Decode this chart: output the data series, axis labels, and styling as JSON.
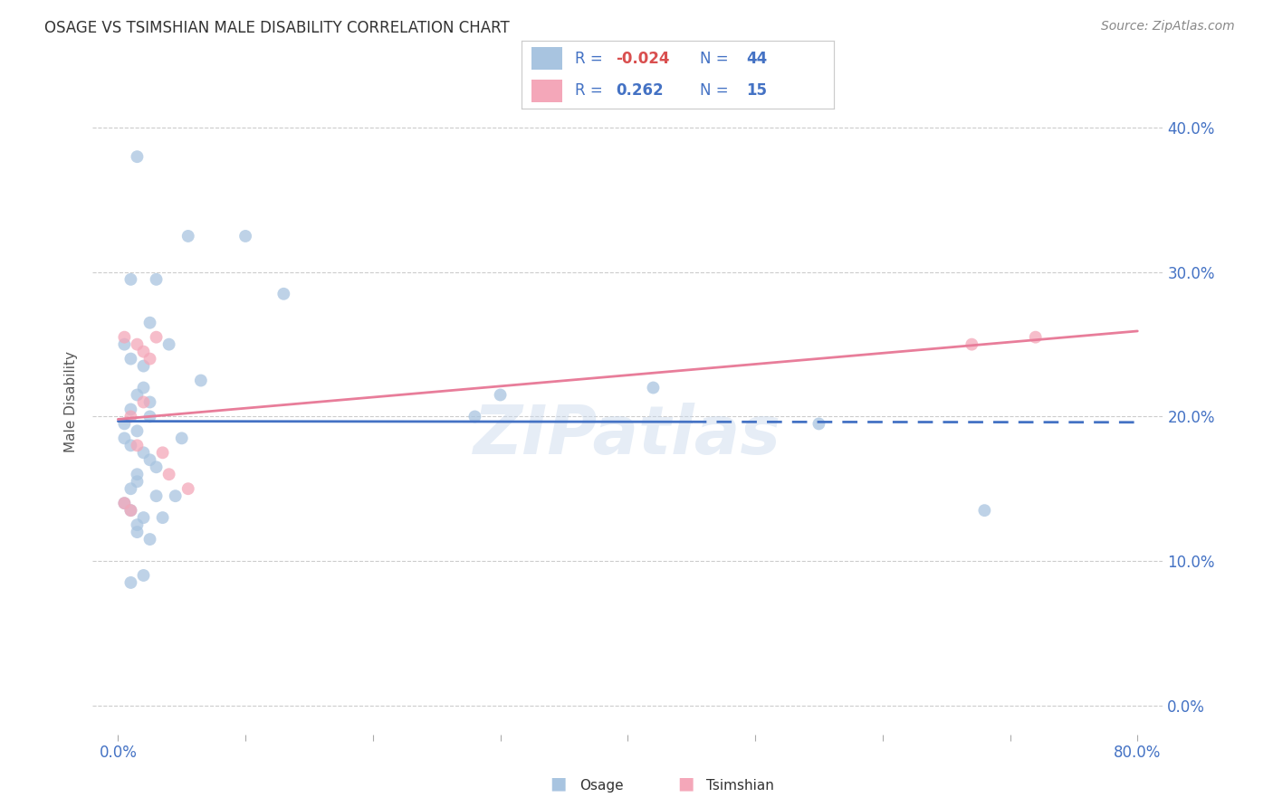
{
  "title": "OSAGE VS TSIMSHIAN MALE DISABILITY CORRELATION CHART",
  "source": "Source: ZipAtlas.com",
  "ylabel": "Male Disability",
  "osage_color": "#a8c4e0",
  "tsimshian_color": "#f4a7b9",
  "osage_line_color": "#4472c4",
  "tsimshian_line_color": "#e87d9a",
  "osage_R": -0.024,
  "osage_N": 44,
  "tsimshian_R": 0.262,
  "tsimshian_N": 15,
  "osage_x": [
    1.5,
    5.5,
    10.0,
    13.0,
    1.0,
    2.5,
    4.0,
    3.0,
    2.0,
    1.5,
    1.0,
    0.5,
    1.5,
    1.0,
    0.5,
    2.0,
    2.5,
    3.0,
    1.5,
    1.0,
    0.5,
    1.0,
    2.0,
    1.5,
    1.5,
    2.5,
    3.5,
    4.5,
    6.5,
    30.0,
    28.0,
    42.0,
    55.0,
    68.0,
    5.0,
    3.0,
    2.0,
    1.0,
    2.5,
    1.5,
    2.0,
    2.5,
    1.0,
    0.5
  ],
  "osage_y": [
    38.0,
    32.5,
    32.5,
    28.5,
    29.5,
    26.5,
    25.0,
    29.5,
    22.0,
    21.5,
    20.5,
    19.5,
    19.0,
    18.0,
    18.5,
    17.5,
    17.0,
    16.5,
    15.5,
    15.0,
    14.0,
    13.5,
    13.0,
    12.5,
    12.0,
    11.5,
    13.0,
    14.5,
    22.5,
    21.5,
    20.0,
    22.0,
    19.5,
    13.5,
    18.5,
    14.5,
    9.0,
    8.5,
    20.0,
    16.0,
    23.5,
    21.0,
    24.0,
    25.0
  ],
  "tsimshian_x": [
    0.5,
    1.5,
    2.0,
    2.5,
    3.0,
    2.0,
    1.0,
    1.5,
    3.5,
    4.0,
    5.5,
    67.0,
    72.0,
    0.5,
    1.0
  ],
  "tsimshian_y": [
    25.5,
    25.0,
    24.5,
    24.0,
    25.5,
    21.0,
    20.0,
    18.0,
    17.5,
    16.0,
    15.0,
    25.0,
    25.5,
    14.0,
    13.5
  ],
  "osage_marker_size": 100,
  "tsimshian_marker_size": 100,
  "xlim": [
    -2.0,
    82.0
  ],
  "ylim": [
    -2.0,
    44.0
  ],
  "ytick_positions": [
    0,
    10,
    20,
    30,
    40
  ],
  "xtick_positions": [
    0,
    10,
    20,
    30,
    40,
    50,
    60,
    70,
    80
  ],
  "background_color": "#ffffff",
  "watermark": "ZIPatlas",
  "grid_color": "#cccccc",
  "grid_linestyle": "--",
  "grid_linewidth": 0.8
}
